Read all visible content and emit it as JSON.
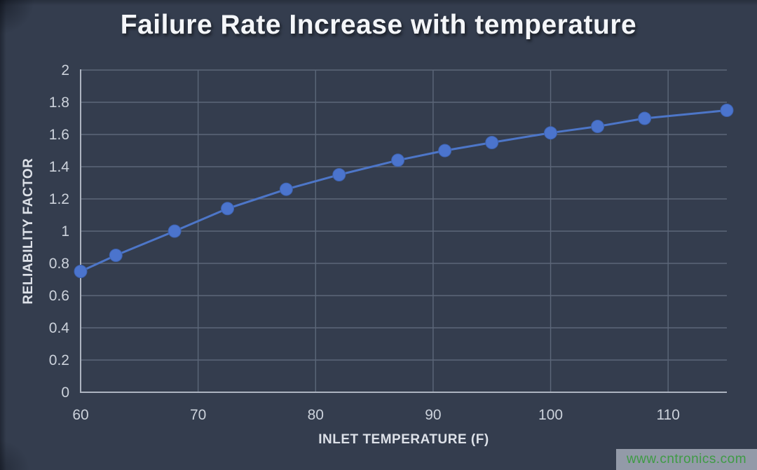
{
  "watermark": {
    "text": "www.cntronics.com"
  },
  "chart_data": {
    "type": "line",
    "title": "Failure Rate Increase with temperature",
    "xlabel": "INLET TEMPERATURE (F)",
    "ylabel": "RELIABILITY FACTOR",
    "series": [
      {
        "name": "Reliability Factor",
        "x": [
          60,
          63,
          68,
          72.5,
          77.5,
          82,
          87,
          91,
          95,
          100,
          104,
          108,
          115
        ],
        "y": [
          0.75,
          0.85,
          1.0,
          1.14,
          1.26,
          1.35,
          1.44,
          1.5,
          1.55,
          1.61,
          1.65,
          1.7,
          1.75
        ]
      }
    ],
    "xlim": [
      60,
      115
    ],
    "ylim": [
      0,
      2
    ],
    "x_ticks": [
      60,
      70,
      80,
      90,
      100,
      110
    ],
    "x_tick_labels": [
      "60",
      "70",
      "80",
      "90",
      "100",
      "110"
    ],
    "y_ticks": [
      0,
      0.2,
      0.4,
      0.6,
      0.8,
      1,
      1.2,
      1.4,
      1.6,
      1.8,
      2
    ],
    "y_tick_labels": [
      "0",
      "0.2",
      "0.4",
      "0.6",
      "0.8",
      "1",
      "1.2",
      "1.4",
      "1.6",
      "1.8",
      "2"
    ],
    "grid": true,
    "legend": "none",
    "marker": "circle",
    "colors": {
      "background": "#343d4e",
      "line": "#4d76c8",
      "marker_fill": "#4b74cd",
      "marker_edge": "#3d62b0",
      "grid": "#5c6779",
      "axis": "#adb4c0",
      "tick_text": "#ccd2db",
      "axis_label_text": "#dde1e8",
      "title_text": "#f4f6f9",
      "watermark_text": "#3f9b45",
      "watermark_bg": "#939aa8"
    }
  }
}
